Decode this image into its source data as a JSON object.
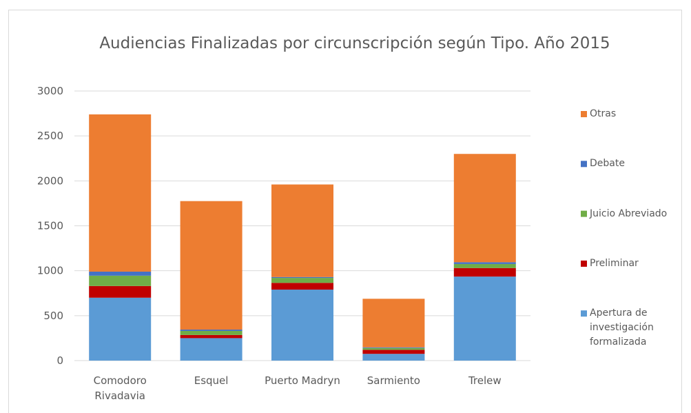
{
  "chart_data": {
    "type": "stacked_bar",
    "title": "Audiencias Finalizadas por circunscripción según Tipo. Año 2015",
    "categories": [
      "Comodoro Rivadavia",
      "Esquel",
      "Puerto Madryn",
      "Sarmiento",
      "Trelew"
    ],
    "series": [
      {
        "name": "Apertura de investigación formalizada",
        "color": "#5b9bd5",
        "values": [
          700,
          250,
          790,
          75,
          935
        ]
      },
      {
        "name": "Preliminar",
        "color": "#c00000",
        "values": [
          130,
          35,
          75,
          45,
          95
        ]
      },
      {
        "name": "Juicio Abreviado",
        "color": "#70ad47",
        "values": [
          115,
          45,
          55,
          20,
          45
        ]
      },
      {
        "name": "Debate",
        "color": "#4472c4",
        "values": [
          45,
          15,
          10,
          8,
          20
        ]
      },
      {
        "name": "Otras",
        "color": "#ed7d31",
        "values": [
          1750,
          1430,
          1030,
          540,
          1205
        ]
      }
    ],
    "ylim": [
      0,
      3000
    ],
    "yticks": [
      0,
      500,
      1000,
      1500,
      2000,
      2500,
      3000
    ],
    "grid": true,
    "legend": "right"
  }
}
